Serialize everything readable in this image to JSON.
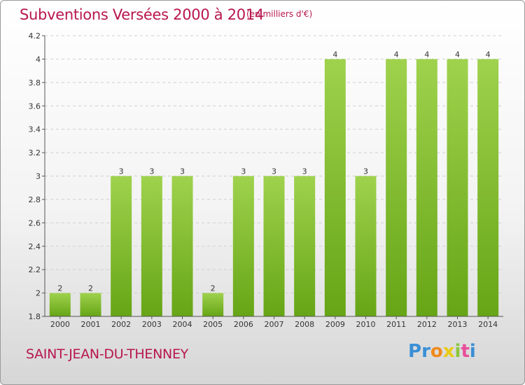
{
  "header": {
    "title": "Subventions Versées 2000 à 2014",
    "unit": "(en milliers d'€)"
  },
  "footer": {
    "place": "SAINT-JEAN-DU-THENNEY",
    "logo": [
      "P",
      "r",
      "o",
      "x",
      "i",
      "t",
      "i"
    ],
    "logo_colors": [
      "#3a8fd6",
      "#3a8fd6",
      "#f08a1c",
      "#e8cc12",
      "#8cc63f",
      "#e84f9a",
      "#3a8fd6"
    ]
  },
  "chart_data": {
    "type": "bar",
    "title": "Subventions Versées 2000 à 2014",
    "subtitle": "(en milliers d'€)",
    "xlabel": "",
    "ylabel": "",
    "categories": [
      "2000",
      "2001",
      "2002",
      "2003",
      "2004",
      "2005",
      "2006",
      "2007",
      "2008",
      "2009",
      "2010",
      "2011",
      "2012",
      "2013",
      "2014"
    ],
    "values": [
      2,
      2,
      3,
      3,
      3,
      2,
      3,
      3,
      3,
      4,
      3,
      4,
      4,
      4,
      4
    ],
    "value_labels": [
      "2",
      "2",
      "3",
      "3",
      "3",
      "2",
      "3",
      "3",
      "3",
      "4",
      "3",
      "4",
      "4",
      "4",
      "4"
    ],
    "ylim": [
      1.8,
      4.2
    ],
    "yticks": [
      1.8,
      2,
      2.2,
      2.4,
      2.6,
      2.8,
      3,
      3.2,
      3.4,
      3.6,
      3.8,
      4,
      4.2
    ],
    "ytick_labels": [
      "1.8",
      "2",
      "2.2",
      "2.4",
      "2.6",
      "2.8",
      "3",
      "3.2",
      "3.4",
      "3.6",
      "3.8",
      "4",
      "4.2"
    ],
    "grid": true,
    "bar_color_top": "#9fd24d",
    "bar_color_bottom": "#66a516"
  }
}
